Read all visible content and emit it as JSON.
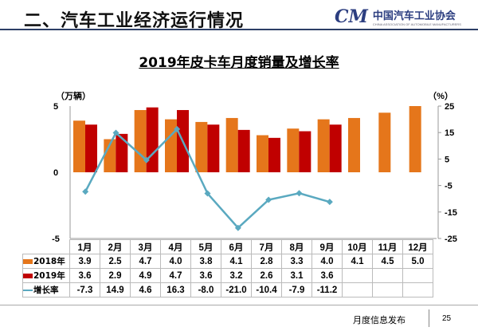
{
  "header": {
    "title": "二、汽车工业经济运行情况",
    "logo_mark": "CM",
    "logo_cn": "中国汽车工业协会",
    "logo_en": "CHINA ASSOCIATION OF AUTOMOBILE MANUFACTURERS"
  },
  "footer": {
    "label": "月度信息发布",
    "page": "25"
  },
  "chart_data": {
    "type": "bar",
    "title": "2019年皮卡车月度销量及增长率",
    "ylabel": "（万辆）",
    "y2label": "（%）",
    "ylim": [
      -5,
      5
    ],
    "y2lim": [
      -25,
      25
    ],
    "yticks": [
      "5",
      "0",
      "-5"
    ],
    "y2ticks": [
      "25",
      "15",
      "5",
      "-5",
      "-15",
      "-25"
    ],
    "categories": [
      "1月",
      "2月",
      "3月",
      "4月",
      "5月",
      "6月",
      "7月",
      "8月",
      "9月",
      "10月",
      "11月",
      "12月"
    ],
    "series": [
      {
        "name": "2018年",
        "type": "bar",
        "color": "#e5761b",
        "values": [
          3.9,
          2.5,
          4.7,
          4.0,
          3.8,
          4.1,
          2.8,
          3.3,
          4.0,
          4.1,
          4.5,
          5.0
        ]
      },
      {
        "name": "2019年",
        "type": "bar",
        "color": "#c00000",
        "values": [
          3.6,
          2.9,
          4.9,
          4.7,
          3.6,
          3.2,
          2.6,
          3.1,
          3.6,
          null,
          null,
          null
        ]
      },
      {
        "name": "增长率",
        "type": "line",
        "axis": "right",
        "color": "#5aa9c0",
        "values": [
          -7.3,
          14.9,
          4.6,
          16.3,
          -8.0,
          -21.0,
          -10.4,
          -7.9,
          -11.2,
          null,
          null,
          null
        ]
      }
    ]
  }
}
